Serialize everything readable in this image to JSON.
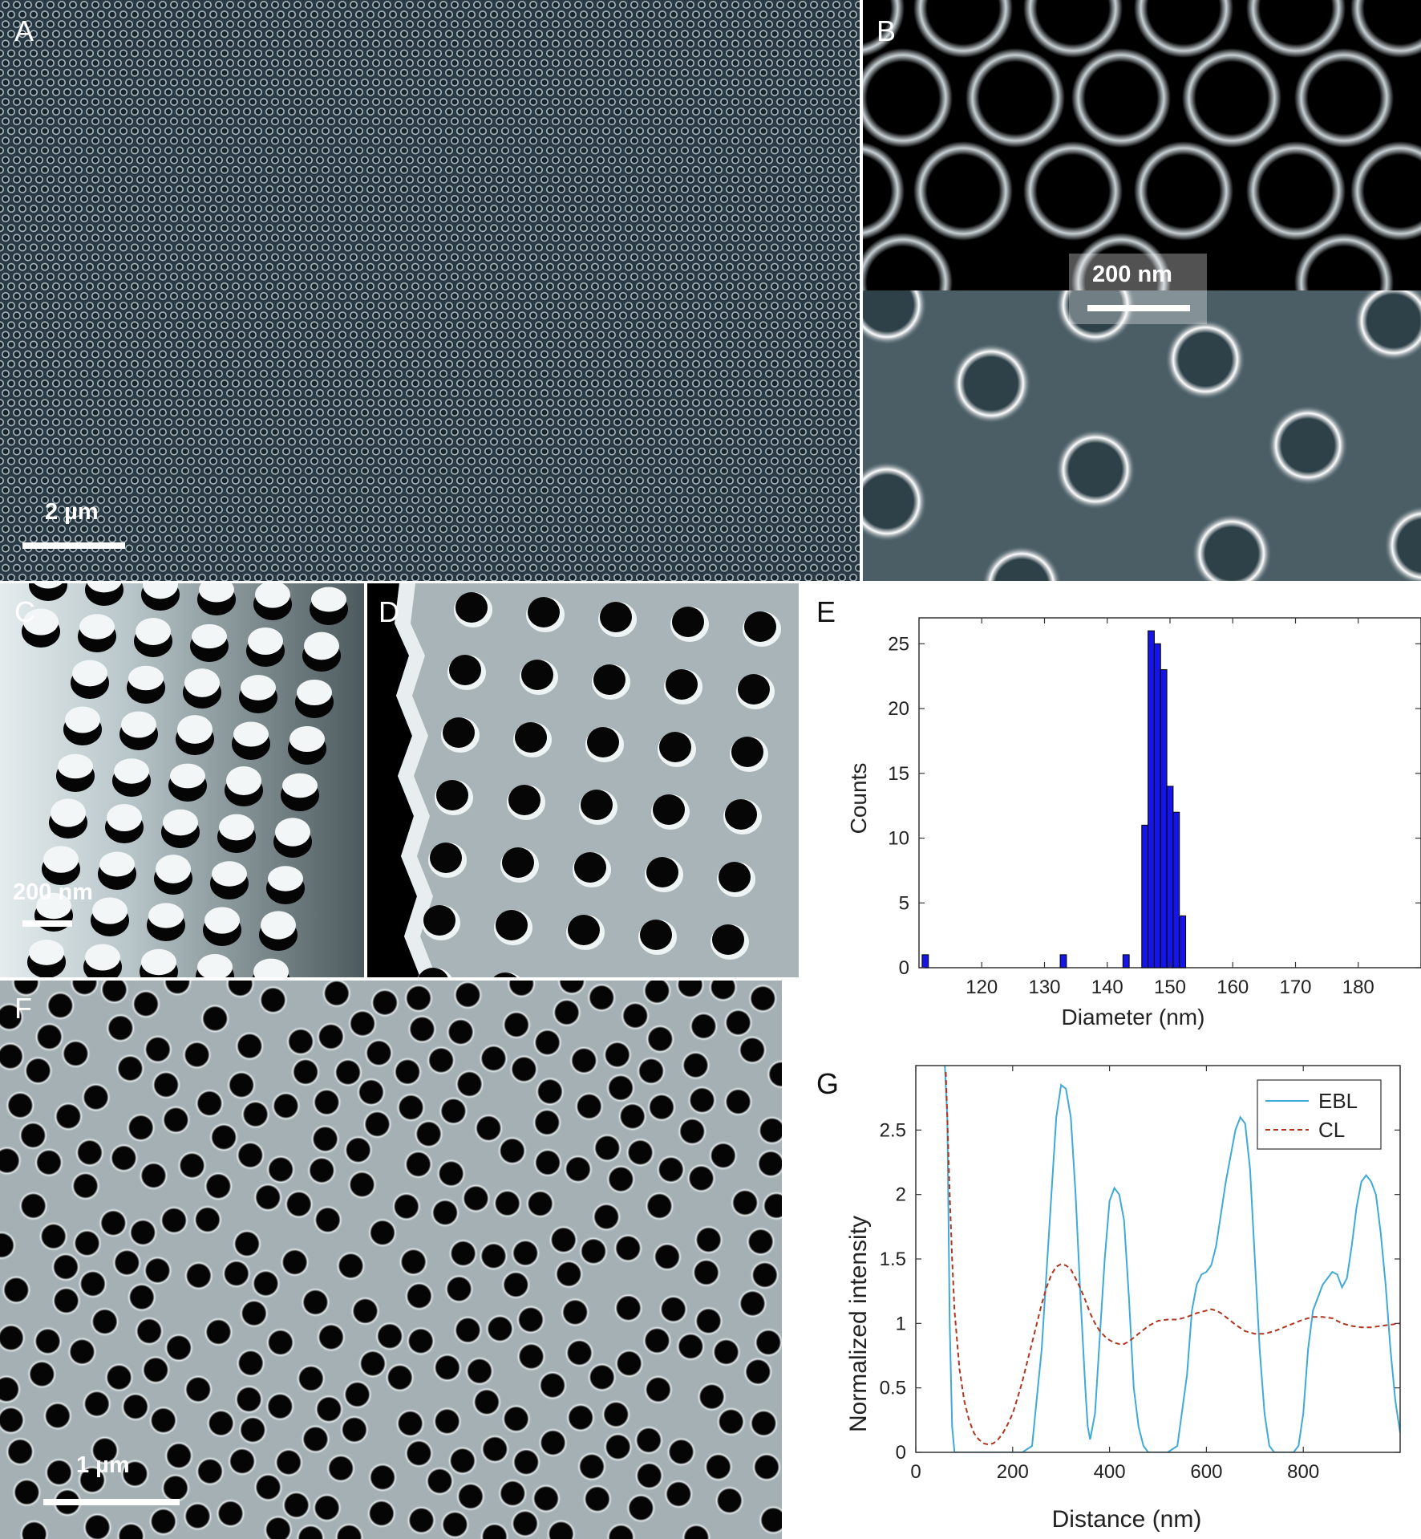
{
  "figure": {
    "panels": {
      "A": {
        "label": "A",
        "scale_bar": "2 µm"
      },
      "B": {
        "label": "B",
        "scale_bar": "200 nm"
      },
      "C": {
        "label": "C",
        "scale_bar": "200 nm"
      },
      "D": {
        "label": "D"
      },
      "E": {
        "label": "E"
      },
      "F": {
        "label": "F",
        "scale_bar": "1 µm"
      },
      "G": {
        "label": "G"
      }
    }
  },
  "chart_data": [
    {
      "type": "bar",
      "panel": "E",
      "xlabel": "Diameter (nm)",
      "ylabel": "Counts",
      "xlim": [
        110,
        190
      ],
      "ylim": [
        0,
        27
      ],
      "xticks": [
        120,
        130,
        140,
        150,
        160,
        170,
        180
      ],
      "yticks": [
        0,
        5,
        10,
        15,
        20,
        25
      ],
      "bin_width": 1,
      "color": "#1515e6",
      "bins": [
        {
          "x": 111,
          "count": 1
        },
        {
          "x": 133,
          "count": 1
        },
        {
          "x": 143,
          "count": 1
        },
        {
          "x": 146,
          "count": 11
        },
        {
          "x": 147,
          "count": 26
        },
        {
          "x": 148,
          "count": 25
        },
        {
          "x": 149,
          "count": 23
        },
        {
          "x": 150,
          "count": 14
        },
        {
          "x": 151,
          "count": 12
        },
        {
          "x": 152,
          "count": 4
        }
      ]
    },
    {
      "type": "line",
      "panel": "G",
      "xlabel": "Distance (nm)",
      "ylabel": "Normalized intensity",
      "xlim": [
        0,
        1000
      ],
      "ylim": [
        0,
        3
      ],
      "xticks": [
        0,
        200,
        400,
        600,
        800
      ],
      "yticks": [
        0,
        0.5,
        1,
        1.5,
        2,
        2.5
      ],
      "legend_position": "top-right",
      "series": [
        {
          "name": "EBL",
          "color": "#3fa9d8",
          "dash": "solid",
          "x": [
            60,
            65,
            70,
            75,
            80,
            90,
            120,
            160,
            200,
            220,
            240,
            260,
            280,
            290,
            300,
            310,
            320,
            330,
            340,
            350,
            355,
            360,
            370,
            380,
            390,
            400,
            410,
            420,
            430,
            440,
            450,
            460,
            470,
            480,
            490,
            500,
            520,
            540,
            560,
            570,
            580,
            590,
            600,
            610,
            620,
            640,
            660,
            670,
            680,
            690,
            700,
            710,
            720,
            730,
            740,
            760,
            780,
            790,
            800,
            810,
            820,
            840,
            860,
            870,
            880,
            890,
            900,
            910,
            920,
            930,
            940,
            950,
            960,
            970,
            980,
            990,
            1000
          ],
          "y": [
            3.0,
            2.6,
            1.0,
            0.2,
            0.0,
            0.0,
            0.0,
            0.0,
            0.0,
            0.0,
            0.05,
            0.8,
            2.0,
            2.6,
            2.85,
            2.82,
            2.6,
            2.0,
            1.2,
            0.5,
            0.2,
            0.1,
            0.3,
            0.9,
            1.5,
            1.95,
            2.05,
            2.0,
            1.8,
            1.2,
            0.5,
            0.2,
            0.05,
            0.0,
            0.0,
            0.0,
            0.0,
            0.05,
            0.6,
            1.1,
            1.3,
            1.38,
            1.4,
            1.45,
            1.6,
            2.1,
            2.5,
            2.6,
            2.55,
            2.2,
            1.5,
            0.8,
            0.3,
            0.05,
            0.0,
            0.0,
            0.0,
            0.05,
            0.3,
            0.8,
            1.1,
            1.3,
            1.4,
            1.38,
            1.28,
            1.35,
            1.6,
            1.9,
            2.1,
            2.15,
            2.1,
            2.0,
            1.7,
            1.3,
            0.8,
            0.4,
            0.15
          ]
        },
        {
          "name": "CL",
          "color": "#b0351e",
          "dash": "dashed",
          "x": [
            62,
            65,
            70,
            75,
            80,
            90,
            100,
            110,
            120,
            130,
            140,
            150,
            160,
            170,
            180,
            190,
            200,
            210,
            220,
            230,
            240,
            250,
            260,
            270,
            280,
            290,
            300,
            310,
            320,
            330,
            340,
            350,
            360,
            370,
            380,
            390,
            400,
            410,
            420,
            430,
            440,
            460,
            480,
            500,
            520,
            540,
            560,
            580,
            600,
            610,
            620,
            630,
            640,
            660,
            680,
            700,
            720,
            740,
            760,
            780,
            800,
            820,
            840,
            860,
            870,
            880,
            890,
            900,
            920,
            940,
            960,
            980,
            1000
          ],
          "y": [
            2.95,
            2.6,
            2.0,
            1.5,
            1.1,
            0.65,
            0.4,
            0.25,
            0.15,
            0.1,
            0.07,
            0.06,
            0.07,
            0.1,
            0.15,
            0.22,
            0.3,
            0.42,
            0.55,
            0.7,
            0.85,
            1.0,
            1.15,
            1.28,
            1.38,
            1.44,
            1.46,
            1.45,
            1.42,
            1.35,
            1.27,
            1.18,
            1.08,
            1.0,
            0.94,
            0.9,
            0.87,
            0.85,
            0.84,
            0.84,
            0.86,
            0.92,
            0.98,
            1.02,
            1.03,
            1.03,
            1.05,
            1.08,
            1.1,
            1.11,
            1.1,
            1.08,
            1.05,
            0.99,
            0.94,
            0.92,
            0.92,
            0.94,
            0.97,
            1.0,
            1.03,
            1.05,
            1.05,
            1.04,
            1.02,
            1.0,
            0.99,
            0.98,
            0.97,
            0.97,
            0.98,
            0.99,
            1.0
          ]
        }
      ]
    }
  ]
}
